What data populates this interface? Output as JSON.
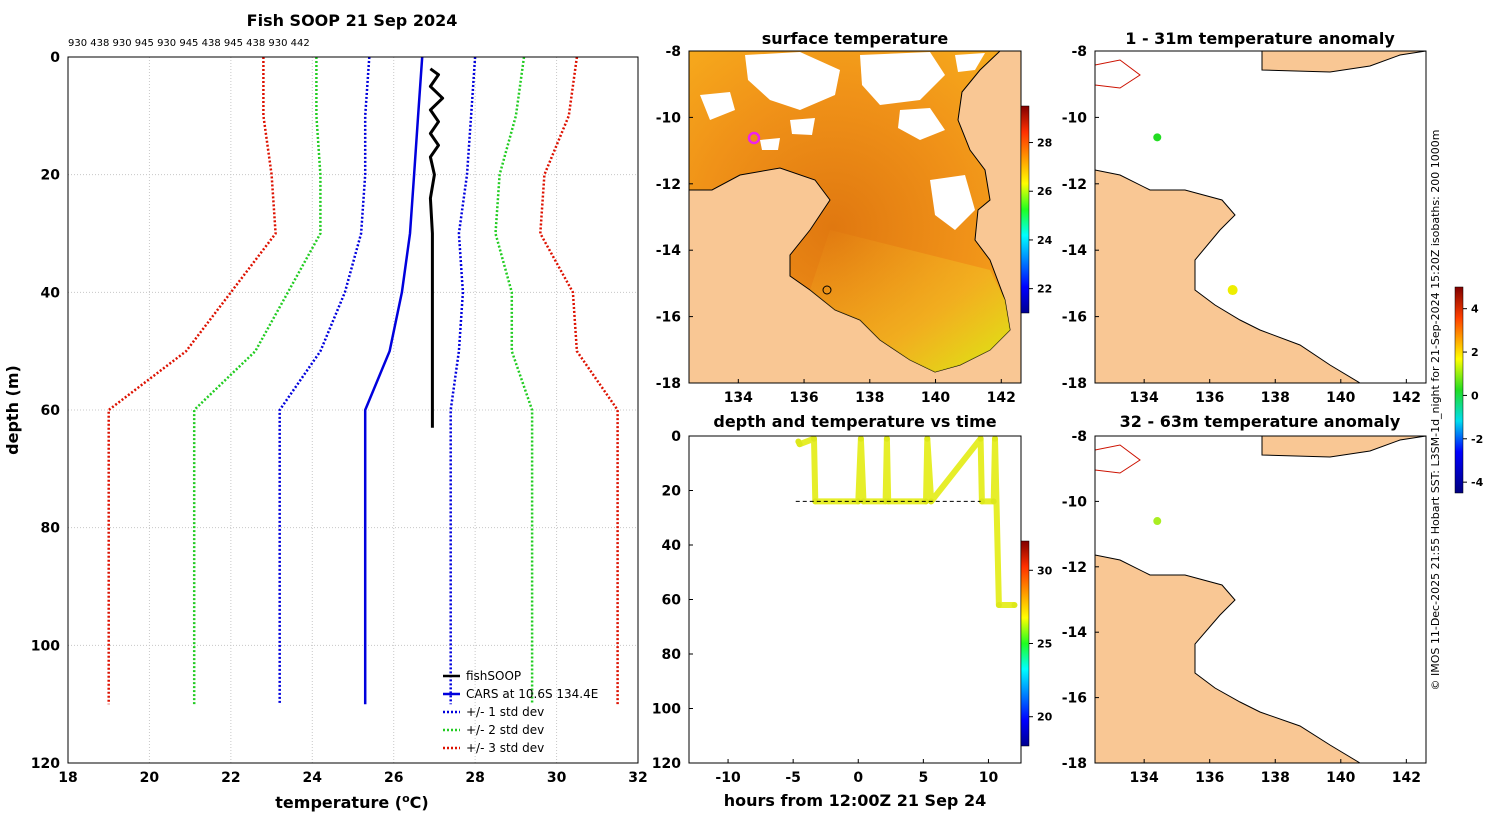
{
  "profile": {
    "title": "Fish SOOP 21 Sep 2024",
    "top_labels": "930 438 930 945 930 945 438 945 438 930 442",
    "xlabel": "temperature (",
    "xlabel_unit": "o",
    "xlabel_end": "C)",
    "ylabel": "depth (m)",
    "legend": [
      "fishSOOP",
      "CARS at 10.6S 134.4E",
      "+/- 1 std dev",
      "+/- 2 std dev",
      "+/- 3 std dev"
    ],
    "colors": {
      "fish": "#000000",
      "cars": "#0000dd",
      "std1": "#0000dd",
      "std2": "#22cc22",
      "std3": "#dd1100"
    }
  },
  "chart_data": [
    {
      "type": "line",
      "title": "Fish SOOP 21 Sep 2024",
      "xlabel": "temperature (oC)",
      "ylabel": "depth (m)",
      "xlim": [
        18,
        32
      ],
      "ylim": [
        120,
        0
      ],
      "xticks": [
        18,
        20,
        22,
        24,
        26,
        28,
        30,
        32
      ],
      "yticks": [
        0,
        20,
        40,
        60,
        80,
        100,
        120
      ],
      "grid": true,
      "legend_position": "bottom-right",
      "series": [
        {
          "name": "CARS at 10.6S 134.4E",
          "points": [
            [
              26.7,
              0
            ],
            [
              26.6,
              10
            ],
            [
              26.5,
              20
            ],
            [
              26.4,
              30
            ],
            [
              26.2,
              40
            ],
            [
              25.9,
              50
            ],
            [
              25.3,
              60
            ],
            [
              25.3,
              110
            ]
          ]
        },
        {
          "name": "CARS -1 std dev",
          "points": [
            [
              25.4,
              0
            ],
            [
              25.3,
              10
            ],
            [
              25.3,
              20
            ],
            [
              25.2,
              30
            ],
            [
              24.8,
              40
            ],
            [
              24.2,
              50
            ],
            [
              23.2,
              60
            ],
            [
              23.2,
              110
            ]
          ]
        },
        {
          "name": "CARS +1 std dev",
          "points": [
            [
              28.0,
              0
            ],
            [
              27.9,
              10
            ],
            [
              27.8,
              20
            ],
            [
              27.6,
              30
            ],
            [
              27.7,
              40
            ],
            [
              27.6,
              50
            ],
            [
              27.4,
              60
            ],
            [
              27.4,
              110
            ]
          ]
        },
        {
          "name": "CARS -2 std dev",
          "points": [
            [
              24.1,
              0
            ],
            [
              24.1,
              10
            ],
            [
              24.2,
              20
            ],
            [
              24.2,
              30
            ],
            [
              23.4,
              40
            ],
            [
              22.6,
              50
            ],
            [
              21.1,
              60
            ],
            [
              21.1,
              110
            ]
          ]
        },
        {
          "name": "CARS +2 std dev",
          "points": [
            [
              29.2,
              0
            ],
            [
              29.0,
              10
            ],
            [
              28.6,
              20
            ],
            [
              28.5,
              30
            ],
            [
              28.9,
              40
            ],
            [
              28.9,
              50
            ],
            [
              29.4,
              60
            ],
            [
              29.4,
              110
            ]
          ]
        },
        {
          "name": "CARS -3 std dev",
          "points": [
            [
              22.8,
              0
            ],
            [
              22.8,
              10
            ],
            [
              23.0,
              20
            ],
            [
              23.1,
              30
            ],
            [
              22.0,
              40
            ],
            [
              20.9,
              50
            ],
            [
              19.0,
              60
            ],
            [
              19.0,
              110
            ]
          ]
        },
        {
          "name": "CARS +3 std dev",
          "points": [
            [
              30.5,
              0
            ],
            [
              30.3,
              10
            ],
            [
              29.7,
              20
            ],
            [
              29.6,
              30
            ],
            [
              30.4,
              40
            ],
            [
              30.5,
              50
            ],
            [
              31.5,
              60
            ],
            [
              31.5,
              110
            ]
          ]
        },
        {
          "name": "fishSOOP",
          "points": [
            [
              26.9,
              2
            ],
            [
              27.1,
              3
            ],
            [
              26.9,
              5
            ],
            [
              27.2,
              7
            ],
            [
              26.9,
              9
            ],
            [
              27.1,
              11
            ],
            [
              26.9,
              13
            ],
            [
              27.1,
              15
            ],
            [
              26.9,
              17
            ],
            [
              27.0,
              20
            ],
            [
              26.9,
              24
            ],
            [
              26.95,
              30
            ],
            [
              26.95,
              40
            ],
            [
              26.95,
              50
            ],
            [
              26.95,
              63
            ]
          ]
        }
      ]
    },
    {
      "type": "heatmap",
      "title": "surface temperature",
      "xlim": [
        132.5,
        142.6
      ],
      "ylim": [
        -18,
        -8
      ],
      "xticks": [
        134,
        136,
        138,
        140,
        142
      ],
      "yticks": [
        -8,
        -10,
        -12,
        -14,
        -16,
        -18
      ],
      "colorbar_ticks": [
        22,
        24,
        26,
        28
      ],
      "colorbar_range": [
        21,
        29.5
      ]
    },
    {
      "type": "scatter",
      "title": "1 - 31m temperature anomaly",
      "xlim": [
        132.5,
        142.6
      ],
      "ylim": [
        -18,
        -8
      ],
      "xticks": [
        134,
        136,
        138,
        140,
        142
      ],
      "yticks": [
        -8,
        -10,
        -12,
        -14,
        -16,
        -18
      ],
      "points": [
        {
          "lon": 134.4,
          "lat": -10.6,
          "anomaly": 0.2
        },
        {
          "lon": 136.7,
          "lat": -15.2,
          "anomaly": 2.2
        }
      ]
    },
    {
      "type": "scatter",
      "title": "depth and temperature vs time",
      "xlabel": "hours from 12:00Z 21 Sep 24",
      "xlim": [
        -13,
        12.5
      ],
      "ylim": [
        120,
        0
      ],
      "xticks": [
        -10,
        -5,
        0,
        5,
        10
      ],
      "yticks": [
        0,
        20,
        40,
        60,
        80,
        100,
        120
      ],
      "colorbar_ticks": [
        20,
        25,
        30
      ],
      "colorbar_range": [
        18,
        32
      ],
      "points": [
        [
          -4.6,
          2
        ],
        [
          -4.5,
          3
        ],
        [
          -3.4,
          1
        ],
        [
          -3.3,
          24
        ],
        [
          0,
          24
        ],
        [
          0.2,
          1
        ],
        [
          0.4,
          24
        ],
        [
          2.1,
          24
        ],
        [
          2.2,
          1
        ],
        [
          2.3,
          24
        ],
        [
          5.2,
          24
        ],
        [
          5.3,
          1
        ],
        [
          5.6,
          24
        ],
        [
          9.4,
          1
        ],
        [
          9.5,
          24
        ],
        [
          10.4,
          24
        ],
        [
          10.5,
          1
        ],
        [
          10.8,
          62
        ],
        [
          12.0,
          62
        ]
      ]
    },
    {
      "type": "scatter",
      "title": "32 - 63m temperature anomaly",
      "xlim": [
        132.5,
        142.6
      ],
      "ylim": [
        -18,
        -8
      ],
      "xticks": [
        134,
        136,
        138,
        140,
        142
      ],
      "yticks": [
        -8,
        -10,
        -12,
        -14,
        -16,
        -18
      ],
      "colorbar_ticks": [
        -4,
        -2,
        0,
        2,
        4
      ],
      "colorbar_range": [
        -4.5,
        5
      ],
      "points": [
        {
          "lon": 134.4,
          "lat": -10.6,
          "anomaly": 1.5
        }
      ]
    }
  ],
  "maps": {
    "sst_title": "surface temperature",
    "anom1_title": "1 - 31m temperature anomaly",
    "time_title": "depth and temperature vs time",
    "time_xlabel": "hours from 12:00Z 21 Sep 24",
    "anom2_title": "32 - 63m temperature anomaly",
    "credit": "© IMOS 11-Dec-2025 21:55 Hobart SST: L3SM-1d_night for 21-Sep-2024 15:20Z isobaths: 200  1000m",
    "colors": {
      "land": "#f9c794",
      "sea": "#ffffff",
      "coast": "#000000",
      "pink": "#ee22ee"
    }
  }
}
